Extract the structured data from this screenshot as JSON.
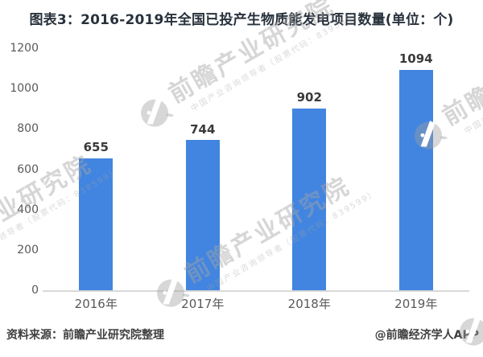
{
  "title": "图表3：2016-2019年全国已投产生物质能发电项目数量(单位：个)",
  "chart_data": {
    "type": "bar",
    "title": "图表3：2016-2019年全国已投产生物质能发电项目数量(单位：个)",
    "categories": [
      "2016年",
      "2017年",
      "2018年",
      "2019年"
    ],
    "values": [
      655,
      744,
      902,
      1094
    ],
    "xlabel": "",
    "ylabel": "",
    "ylim": [
      0,
      1200
    ],
    "yticks": [
      0,
      200,
      400,
      600,
      800,
      1000,
      1200
    ],
    "grid": false,
    "legend": "none",
    "value_labels_shown": true,
    "bar_color": "#4285E0"
  },
  "footer": {
    "source": "资料来源：前瞻产业研究院整理",
    "credit": "@前瞻经济学人APP"
  },
  "watermark": {
    "logo_icon": "qianzhan-bird-logo-icon",
    "text": "前瞻产业研究院",
    "subtext": "中国产业咨询领导者（股票代码：839599）"
  },
  "colors": {
    "bar": "#4285E0",
    "title_text": "#28323C",
    "axis_text": "#595959",
    "value_label_text": "#3A3A3A",
    "footer_text": "#3F3F3F",
    "axis_line": "#D9D9D9",
    "watermark": "#A3A3A3"
  }
}
